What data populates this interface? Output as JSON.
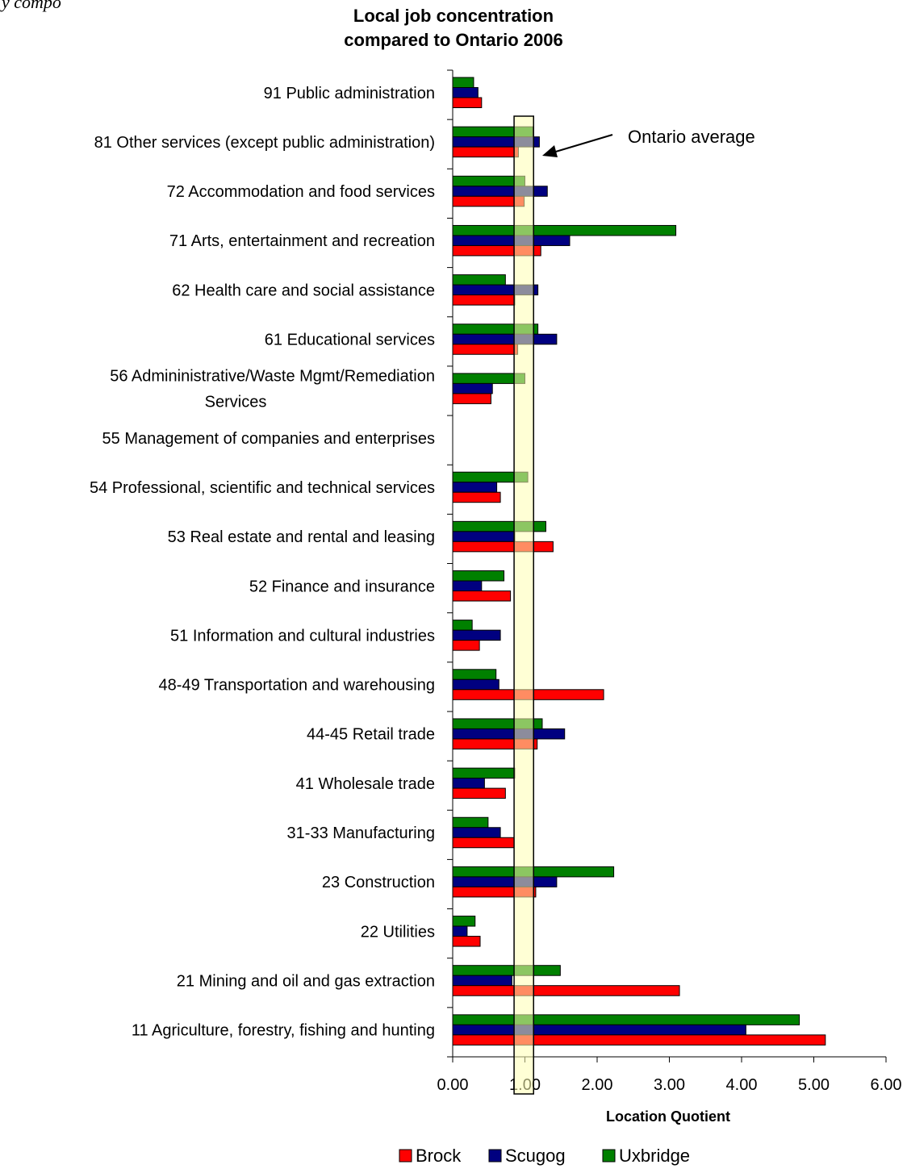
{
  "caption": "y compo",
  "chart_data": {
    "type": "bar",
    "orientation": "horizontal",
    "title": [
      "Local job concentration",
      "compared to Ontario 2006"
    ],
    "xlabel": "Location Quotient",
    "ylabel": "",
    "xlim": [
      0,
      6
    ],
    "xticks": [
      "0.00",
      "1.00",
      "2.00",
      "3.00",
      "4.00",
      "5.00",
      "6.00"
    ],
    "legend_position": "bottom",
    "annotation": "Ontario average",
    "reference_band": [
      0.85,
      1.12
    ],
    "categories": [
      [
        "91 Public administration"
      ],
      [
        "81 Other services (except public administration)"
      ],
      [
        "72 Accommodation and food services"
      ],
      [
        "71 Arts, entertainment and recreation"
      ],
      [
        "62 Health care and social assistance"
      ],
      [
        "61 Educational services"
      ],
      [
        "56 Admininistrative/Waste Mgmt/Remediation",
        "Services"
      ],
      [
        "55 Management of companies and enterprises"
      ],
      [
        "54 Professional, scientific and technical services"
      ],
      [
        "53 Real estate and rental and leasing"
      ],
      [
        "52 Finance and insurance"
      ],
      [
        "51 Information and cultural industries"
      ],
      [
        "48-49 Transportation and warehousing"
      ],
      [
        "44-45 Retail trade"
      ],
      [
        "41 Wholesale trade"
      ],
      [
        "31-33 Manufacturing"
      ],
      [
        "23 Construction"
      ],
      [
        "22 Utilities"
      ],
      [
        "21 Mining and oil and gas extraction"
      ],
      [
        "11 Agriculture, forestry, fishing and hunting"
      ]
    ],
    "series": [
      {
        "name": "Uxbridge",
        "color": "#008000",
        "values": [
          0.29,
          1.11,
          1.0,
          3.09,
          0.73,
          1.18,
          1.0,
          0,
          1.04,
          1.29,
          0.71,
          0.27,
          0.6,
          1.24,
          0.86,
          0.49,
          2.23,
          0.31,
          1.49,
          4.8
        ]
      },
      {
        "name": "Scugog",
        "color": "#000080",
        "values": [
          0.35,
          1.2,
          1.31,
          1.62,
          1.18,
          1.44,
          0.55,
          0,
          0.61,
          0.86,
          0.4,
          0.66,
          0.64,
          1.55,
          0.44,
          0.66,
          1.44,
          0.2,
          0.82,
          4.06
        ]
      },
      {
        "name": "Brock",
        "color": "#ff0000",
        "values": [
          0.4,
          0.91,
          0.99,
          1.22,
          0.86,
          0.9,
          0.53,
          0,
          0.66,
          1.39,
          0.8,
          0.37,
          2.09,
          1.17,
          0.73,
          0.85,
          1.15,
          0.38,
          3.14,
          5.16
        ]
      }
    ],
    "legend_order": [
      "Brock",
      "Scugog",
      "Uxbridge"
    ]
  }
}
